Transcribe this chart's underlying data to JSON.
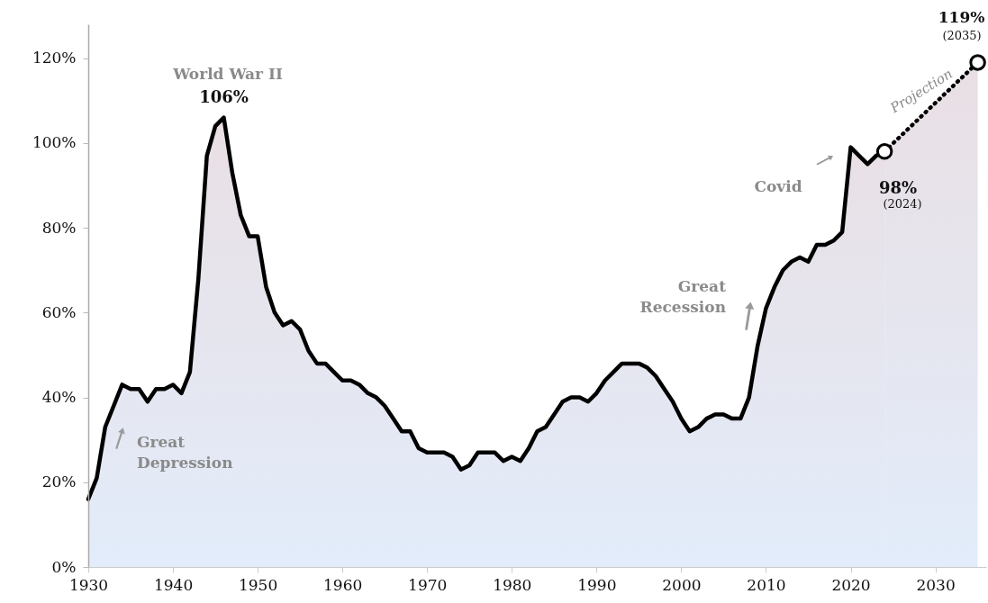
{
  "chart_data": {
    "type": "area",
    "x": [
      1930,
      1931,
      1932,
      1933,
      1934,
      1935,
      1936,
      1937,
      1938,
      1939,
      1940,
      1941,
      1942,
      1943,
      1944,
      1945,
      1946,
      1947,
      1948,
      1949,
      1950,
      1951,
      1952,
      1953,
      1954,
      1955,
      1956,
      1957,
      1958,
      1959,
      1960,
      1961,
      1962,
      1963,
      1964,
      1965,
      1966,
      1967,
      1968,
      1969,
      1970,
      1971,
      1972,
      1973,
      1974,
      1975,
      1976,
      1977,
      1978,
      1979,
      1980,
      1981,
      1982,
      1983,
      1984,
      1985,
      1986,
      1987,
      1988,
      1989,
      1990,
      1991,
      1992,
      1993,
      1994,
      1995,
      1996,
      1997,
      1998,
      1999,
      2000,
      2001,
      2002,
      2003,
      2004,
      2005,
      2006,
      2007,
      2008,
      2009,
      2010,
      2011,
      2012,
      2013,
      2014,
      2015,
      2016,
      2017,
      2018,
      2019,
      2020,
      2021,
      2022,
      2023,
      2024
    ],
    "series": [
      {
        "color": "#000000",
        "values": [
          16,
          21,
          33,
          38,
          43,
          42,
          42,
          39,
          42,
          42,
          43,
          41,
          46,
          68,
          97,
          104,
          106,
          93,
          83,
          78,
          78,
          66,
          60,
          57,
          58,
          56,
          51,
          48,
          48,
          46,
          44,
          44,
          43,
          41,
          40,
          38,
          35,
          32,
          32,
          28,
          27,
          27,
          27,
          26,
          23,
          24,
          27,
          27,
          27,
          25,
          26,
          25,
          28,
          32,
          33,
          36,
          39,
          40,
          40,
          39,
          41,
          44,
          46,
          48,
          48,
          48,
          47,
          45,
          42,
          39,
          35,
          32,
          33,
          35,
          36,
          36,
          35,
          35,
          40,
          52,
          61,
          66,
          70,
          72,
          73,
          72,
          76,
          76,
          77,
          79,
          99,
          97,
          95,
          97,
          98
        ]
      },
      {
        "color": "#000000",
        "line_style": "dotted",
        "marker": "circle",
        "x": [
          2024,
          2035
        ],
        "values": [
          98,
          119
        ]
      }
    ],
    "xlim": [
      1930,
      2036
    ],
    "xticks": [
      1930,
      1940,
      1950,
      1960,
      1970,
      1980,
      1990,
      2000,
      2010,
      2020,
      2030
    ],
    "ylim": [
      0,
      128
    ],
    "yticks": [
      {
        "value": 0,
        "label": "0%"
      },
      {
        "value": 20,
        "label": "20%"
      },
      {
        "value": 40,
        "label": "40%"
      },
      {
        "value": 60,
        "label": "60%"
      },
      {
        "value": 80,
        "label": "80%"
      },
      {
        "value": 100,
        "label": "100%"
      },
      {
        "value": 120,
        "label": "120%"
      }
    ],
    "grid": false,
    "marker": "none",
    "annotations": [
      "World War II",
      {
        "text": "106%",
        "x": 1946,
        "y": 106
      },
      "Great Depression",
      "Great Recession",
      "Covid",
      {
        "text": "98%",
        "x": 2024,
        "y": 98
      },
      "(2024)",
      {
        "text": "119%",
        "x": 2035,
        "y": 119
      },
      "(2035)",
      "Projection"
    ]
  }
}
